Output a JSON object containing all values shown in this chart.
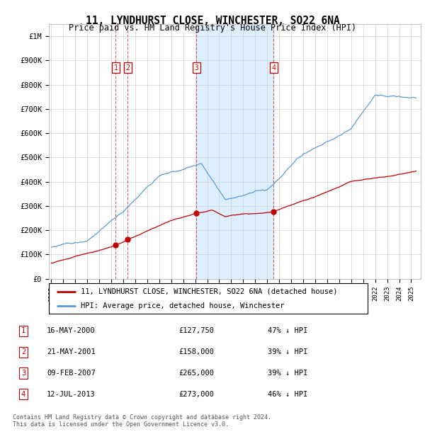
{
  "title": "11, LYNDHURST CLOSE, WINCHESTER, SO22 6NA",
  "subtitle": "Price paid vs. HM Land Registry's House Price Index (HPI)",
  "ylabel_ticks": [
    "£0",
    "£100K",
    "£200K",
    "£300K",
    "£400K",
    "£500K",
    "£600K",
    "£700K",
    "£800K",
    "£900K",
    "£1M"
  ],
  "ytick_values": [
    0,
    100000,
    200000,
    300000,
    400000,
    500000,
    600000,
    700000,
    800000,
    900000,
    1000000
  ],
  "xmin": 1994.8,
  "xmax": 2025.8,
  "ymin": 0,
  "ymax": 1050000,
  "transactions": [
    {
      "num": 1,
      "date": "16-MAY-2000",
      "price": 127750,
      "year": 2000.37,
      "pct": "47% ↓ HPI"
    },
    {
      "num": 2,
      "date": "21-MAY-2001",
      "price": 158000,
      "year": 2001.38,
      "pct": "39% ↓ HPI"
    },
    {
      "num": 3,
      "date": "09-FEB-2007",
      "price": 265000,
      "year": 2007.11,
      "pct": "39% ↓ HPI"
    },
    {
      "num": 4,
      "date": "12-JUL-2013",
      "price": 273000,
      "year": 2013.53,
      "pct": "46% ↓ HPI"
    }
  ],
  "hpi_color": "#5b9bd5",
  "price_color": "#c00000",
  "shade_color": "#ddeeff",
  "marker_box_color": "#c00000",
  "grid_color": "#d0d0d0",
  "background_color": "#ffffff",
  "legend_label_red": "11, LYNDHURST CLOSE, WINCHESTER, SO22 6NA (detached house)",
  "legend_label_blue": "HPI: Average price, detached house, Winchester",
  "footnote": "Contains HM Land Registry data © Crown copyright and database right 2024.\nThis data is licensed under the Open Government Licence v3.0."
}
